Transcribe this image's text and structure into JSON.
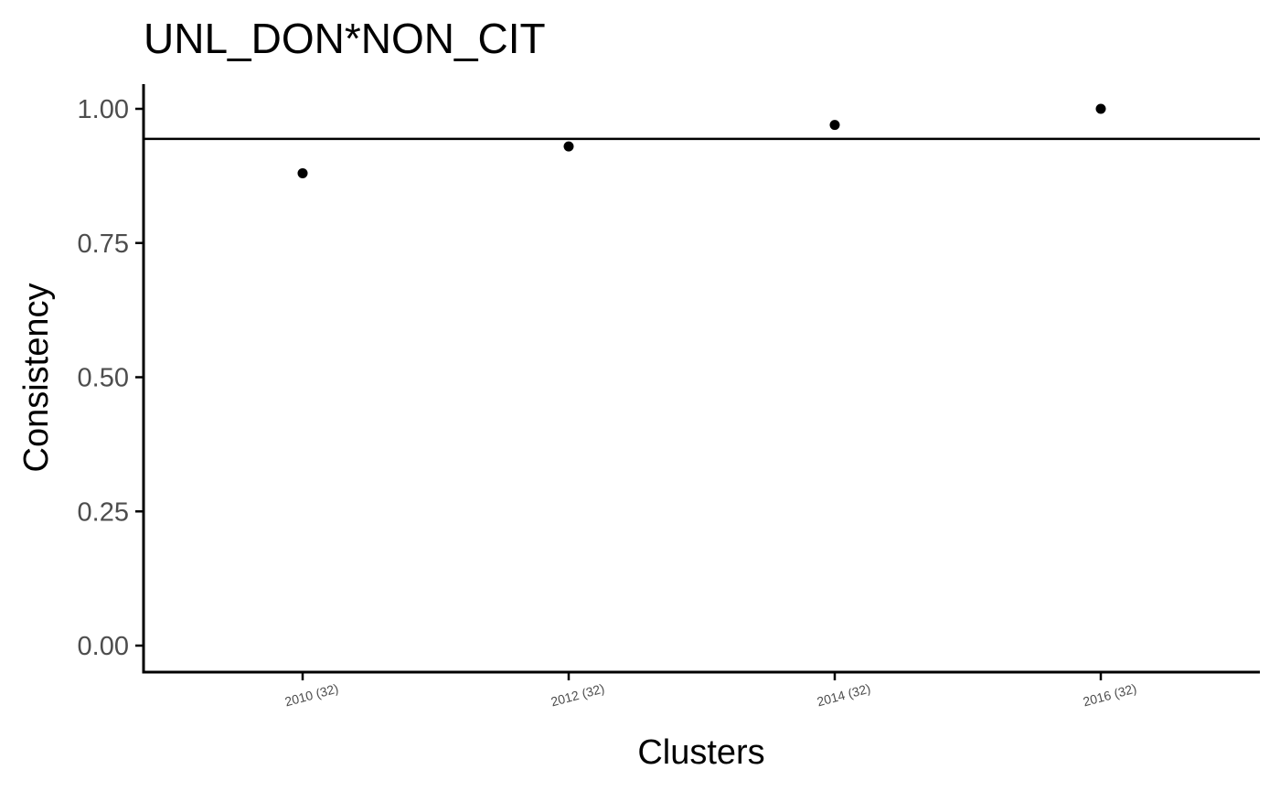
{
  "chart_data": {
    "type": "scatter",
    "title": "UNL_DON*NON_CIT",
    "xlabel": "Clusters",
    "ylabel": "Consistency",
    "categories": [
      "2010 (32)",
      "2012 (32)",
      "2014 (32)",
      "2016 (32)"
    ],
    "series": [
      {
        "values": [
          0.88,
          0.93,
          0.97,
          1.0
        ]
      }
    ],
    "reference_line": 0.944,
    "ylim": [
      -0.05,
      1.05
    ],
    "yticks": [
      0,
      0.25,
      0.5,
      0.75,
      1
    ],
    "ytick_labels": [
      "0.00",
      "0.25",
      "0.50",
      "0.75",
      "1.00"
    ],
    "grid": false,
    "legend": "none",
    "colors": {
      "points": "#000000",
      "axis": "#000000",
      "tick_text": "#4d4d4d"
    }
  }
}
